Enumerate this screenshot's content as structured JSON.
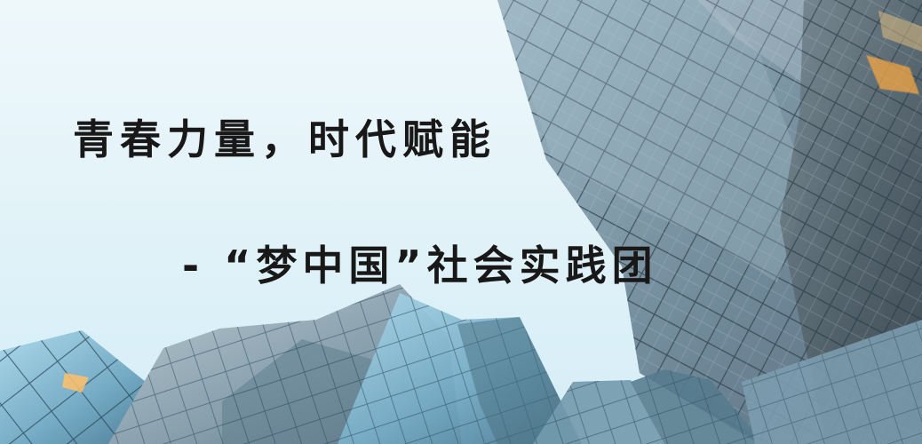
{
  "banner": {
    "headline": "青春力量，时代赋能",
    "subheadline": "- “梦中国”社会实践团"
  },
  "scene": {
    "sky_color": "#dff3f8",
    "glass_color": "#6f93a8",
    "window_glow_color": "#f5a23a"
  }
}
